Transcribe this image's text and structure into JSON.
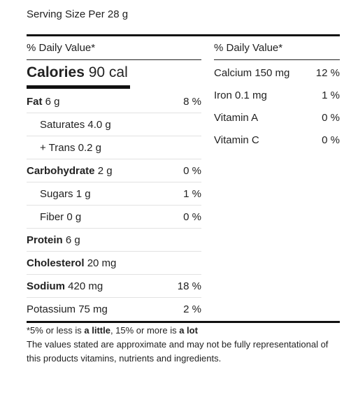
{
  "serving": "Serving Size Per 28 g",
  "left": {
    "dv_header": "% Daily Value*",
    "calories_label": "Calories",
    "calories_value": "90 cal",
    "rows": [
      {
        "bold": "Fat",
        "rest": "6 g",
        "pct": "8 %"
      },
      {
        "bold": "",
        "rest": "Saturates 4.0 g",
        "pct": ""
      },
      {
        "bold": "",
        "rest": "+ Trans 0.2 g",
        "pct": ""
      },
      {
        "bold": "Carbohydrate",
        "rest": "2 g",
        "pct": "0 %"
      },
      {
        "bold": "",
        "rest": "Sugars 1 g",
        "pct": "1 %"
      },
      {
        "bold": "",
        "rest": "Fiber 0 g",
        "pct": "0 %"
      },
      {
        "bold": "Protein",
        "rest": "6 g",
        "pct": ""
      },
      {
        "bold": "Cholesterol",
        "rest": "20 mg",
        "pct": ""
      },
      {
        "bold": "Sodium",
        "rest": "420 mg",
        "pct": "18 %"
      },
      {
        "bold": "",
        "rest": "Potassium 75 mg",
        "pct": "2 %"
      }
    ]
  },
  "right": {
    "dv_header": "% Daily Value*",
    "rows": [
      {
        "name": "Calcium 150 mg",
        "pct": "12 %"
      },
      {
        "name": "Iron 0.1 mg",
        "pct": "1 %"
      },
      {
        "name": "Vitamin A",
        "pct": "0 %"
      },
      {
        "name": "Vitamin C",
        "pct": "0 %"
      }
    ]
  },
  "footnote": {
    "p1": "*5% or less is ",
    "little": "a little",
    "p2": ", 15% or more is ",
    "lot": "a lot",
    "disclaimer": "The values stated are approximate and may not be fully representational of this products vitamins, nutrients and ingredients."
  }
}
